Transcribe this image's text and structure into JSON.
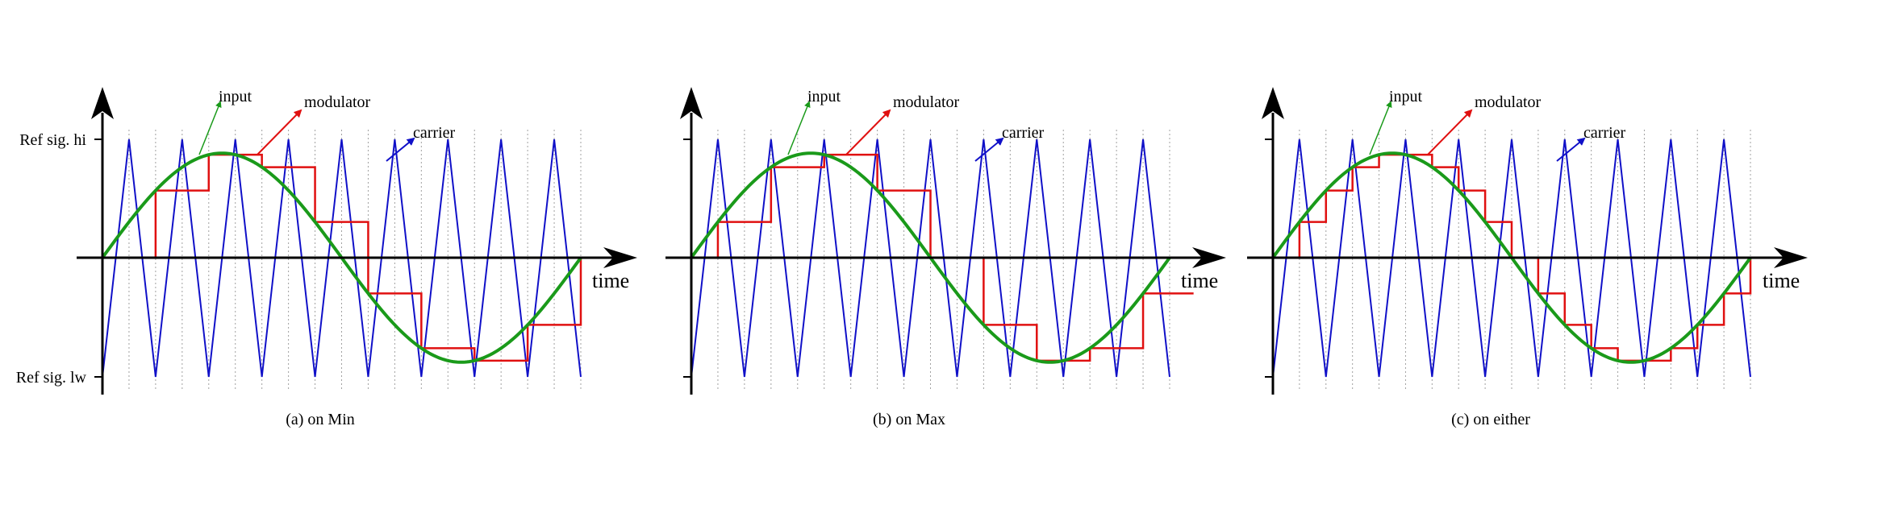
{
  "figure": {
    "y_labels": {
      "hi": "Ref sig. hi",
      "lo": "Ref sig. lw"
    },
    "x_label": "time",
    "annotations": {
      "input": "input",
      "modulator": "modulator",
      "carrier": "carrier"
    },
    "colors": {
      "input": "#1a9a1a",
      "modulator": "#e01010",
      "carrier": "#1010c8",
      "axis": "#000000",
      "grid": "#a0a0a0"
    }
  },
  "panels": [
    {
      "id": "a",
      "caption": "(a) on Min",
      "mode": "min",
      "show_y_labels": true
    },
    {
      "id": "b",
      "caption": "(b) on Max",
      "mode": "max",
      "show_y_labels": false
    },
    {
      "id": "c",
      "caption": "(c) on either",
      "mode": "either",
      "show_y_labels": false
    }
  ],
  "signal": {
    "carrier_periods": 9,
    "input_periods_visible": 1,
    "input_amplitude": 0.88,
    "carrier_range": [
      -1,
      1
    ]
  }
}
